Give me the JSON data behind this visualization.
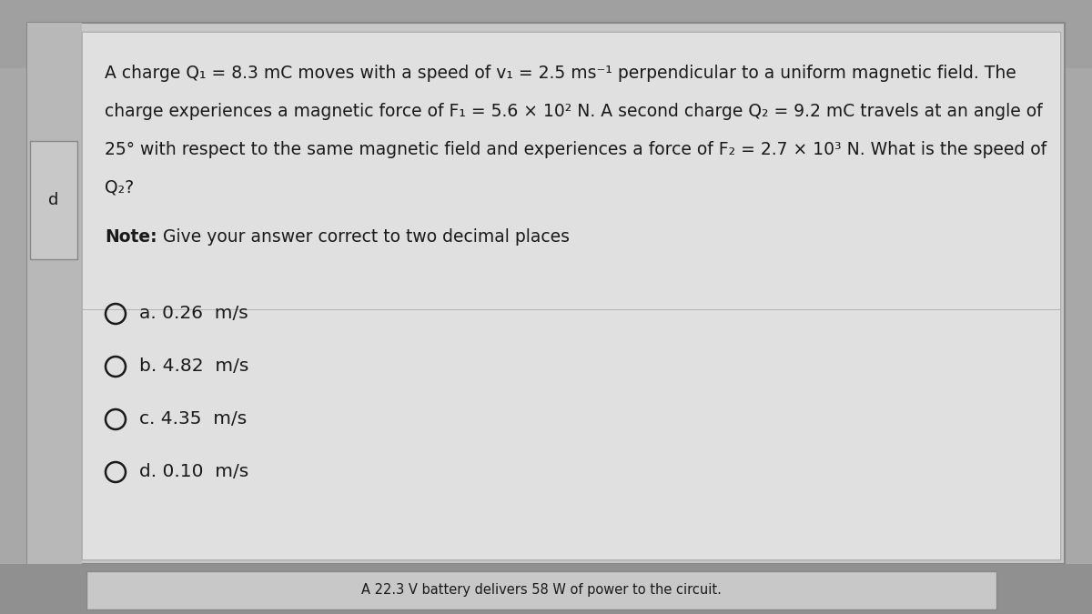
{
  "bg_color": "#a8a8a8",
  "outer_box_color": "#c8c8c8",
  "inner_box_color": "#d4d4d4",
  "white_box_color": "#e0e0e0",
  "left_tab_color": "#c0c0c0",
  "text_color": "#1a1a1a",
  "line1": "A charge Q₁ = 8.3 mC moves with a speed of v₁ = 2.5 ms⁻¹ perpendicular to a uniform magnetic field. The",
  "line2": "charge experiences a magnetic force of F₁ = 5.6 × 10² N. A second charge Q₂ = 9.2 mC travels at an angle of",
  "line3": "25° with respect to the same magnetic field and experiences a force of F₂ = 2.7 × 10³ N. What is the speed of",
  "line4": "Q₂?",
  "note_bold": "Note:",
  "note_rest": " Give your answer correct to two decimal places",
  "options": [
    "a. 0.26  m/s",
    "b. 4.82  m/s",
    "c. 4.35  m/s",
    "d. 0.10  m/s"
  ],
  "bottom_text": "A 22.3 V battery delivers 58 W of power to the circuit.",
  "left_label": "d",
  "title_fontsize": 13.5,
  "note_fontsize": 13.5,
  "option_fontsize": 14.5
}
